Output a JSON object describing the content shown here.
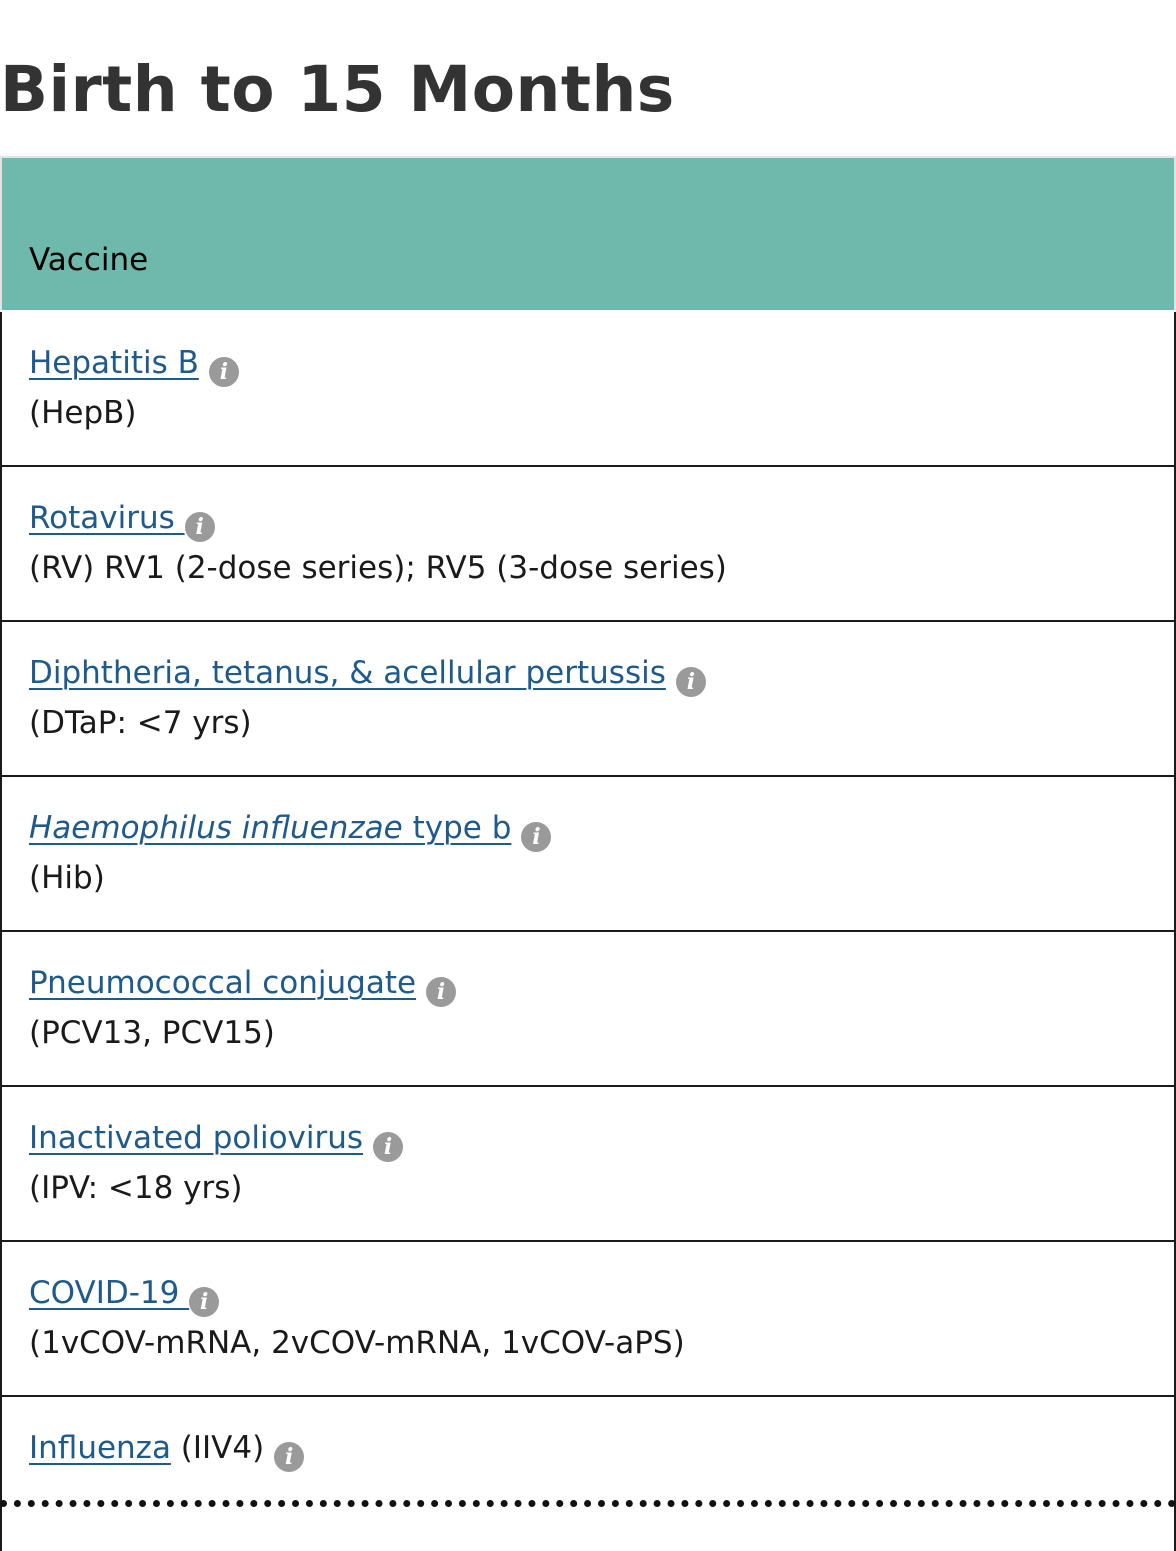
{
  "page": {
    "title": "Birth to 15 Months"
  },
  "table": {
    "header": "Vaccine",
    "header_color": "#6fb9ac",
    "link_color": "#1f5a8c",
    "rows": [
      {
        "link": "Hepatitis B",
        "detail": "(HepB)"
      },
      {
        "link": "Rotavirus ",
        "detail": "(RV) RV1 (2-dose series); RV5 (3-dose series)"
      },
      {
        "link": "Diphtheria, tetanus, & acellular pertussis",
        "detail": "(DTaP: <7 yrs)"
      },
      {
        "link_italic": "Haemophilus influenzae",
        "link": " type b",
        "detail": "(Hib)"
      },
      {
        "link": "Pneumococcal conjugate",
        "detail": "(PCV13, PCV15)"
      },
      {
        "link": "Inactivated poliovirus",
        "detail": "(IPV: <18 yrs)"
      },
      {
        "link": "COVID-19 ",
        "detail": "(1vCOV-mRNA, 2vCOV-mRNA, 1vCOV-aPS)"
      },
      {
        "link": "Influenza",
        "inline_detail": " (IIV4)"
      }
    ],
    "info_icon": "info-icon",
    "info_glyph": "i"
  }
}
